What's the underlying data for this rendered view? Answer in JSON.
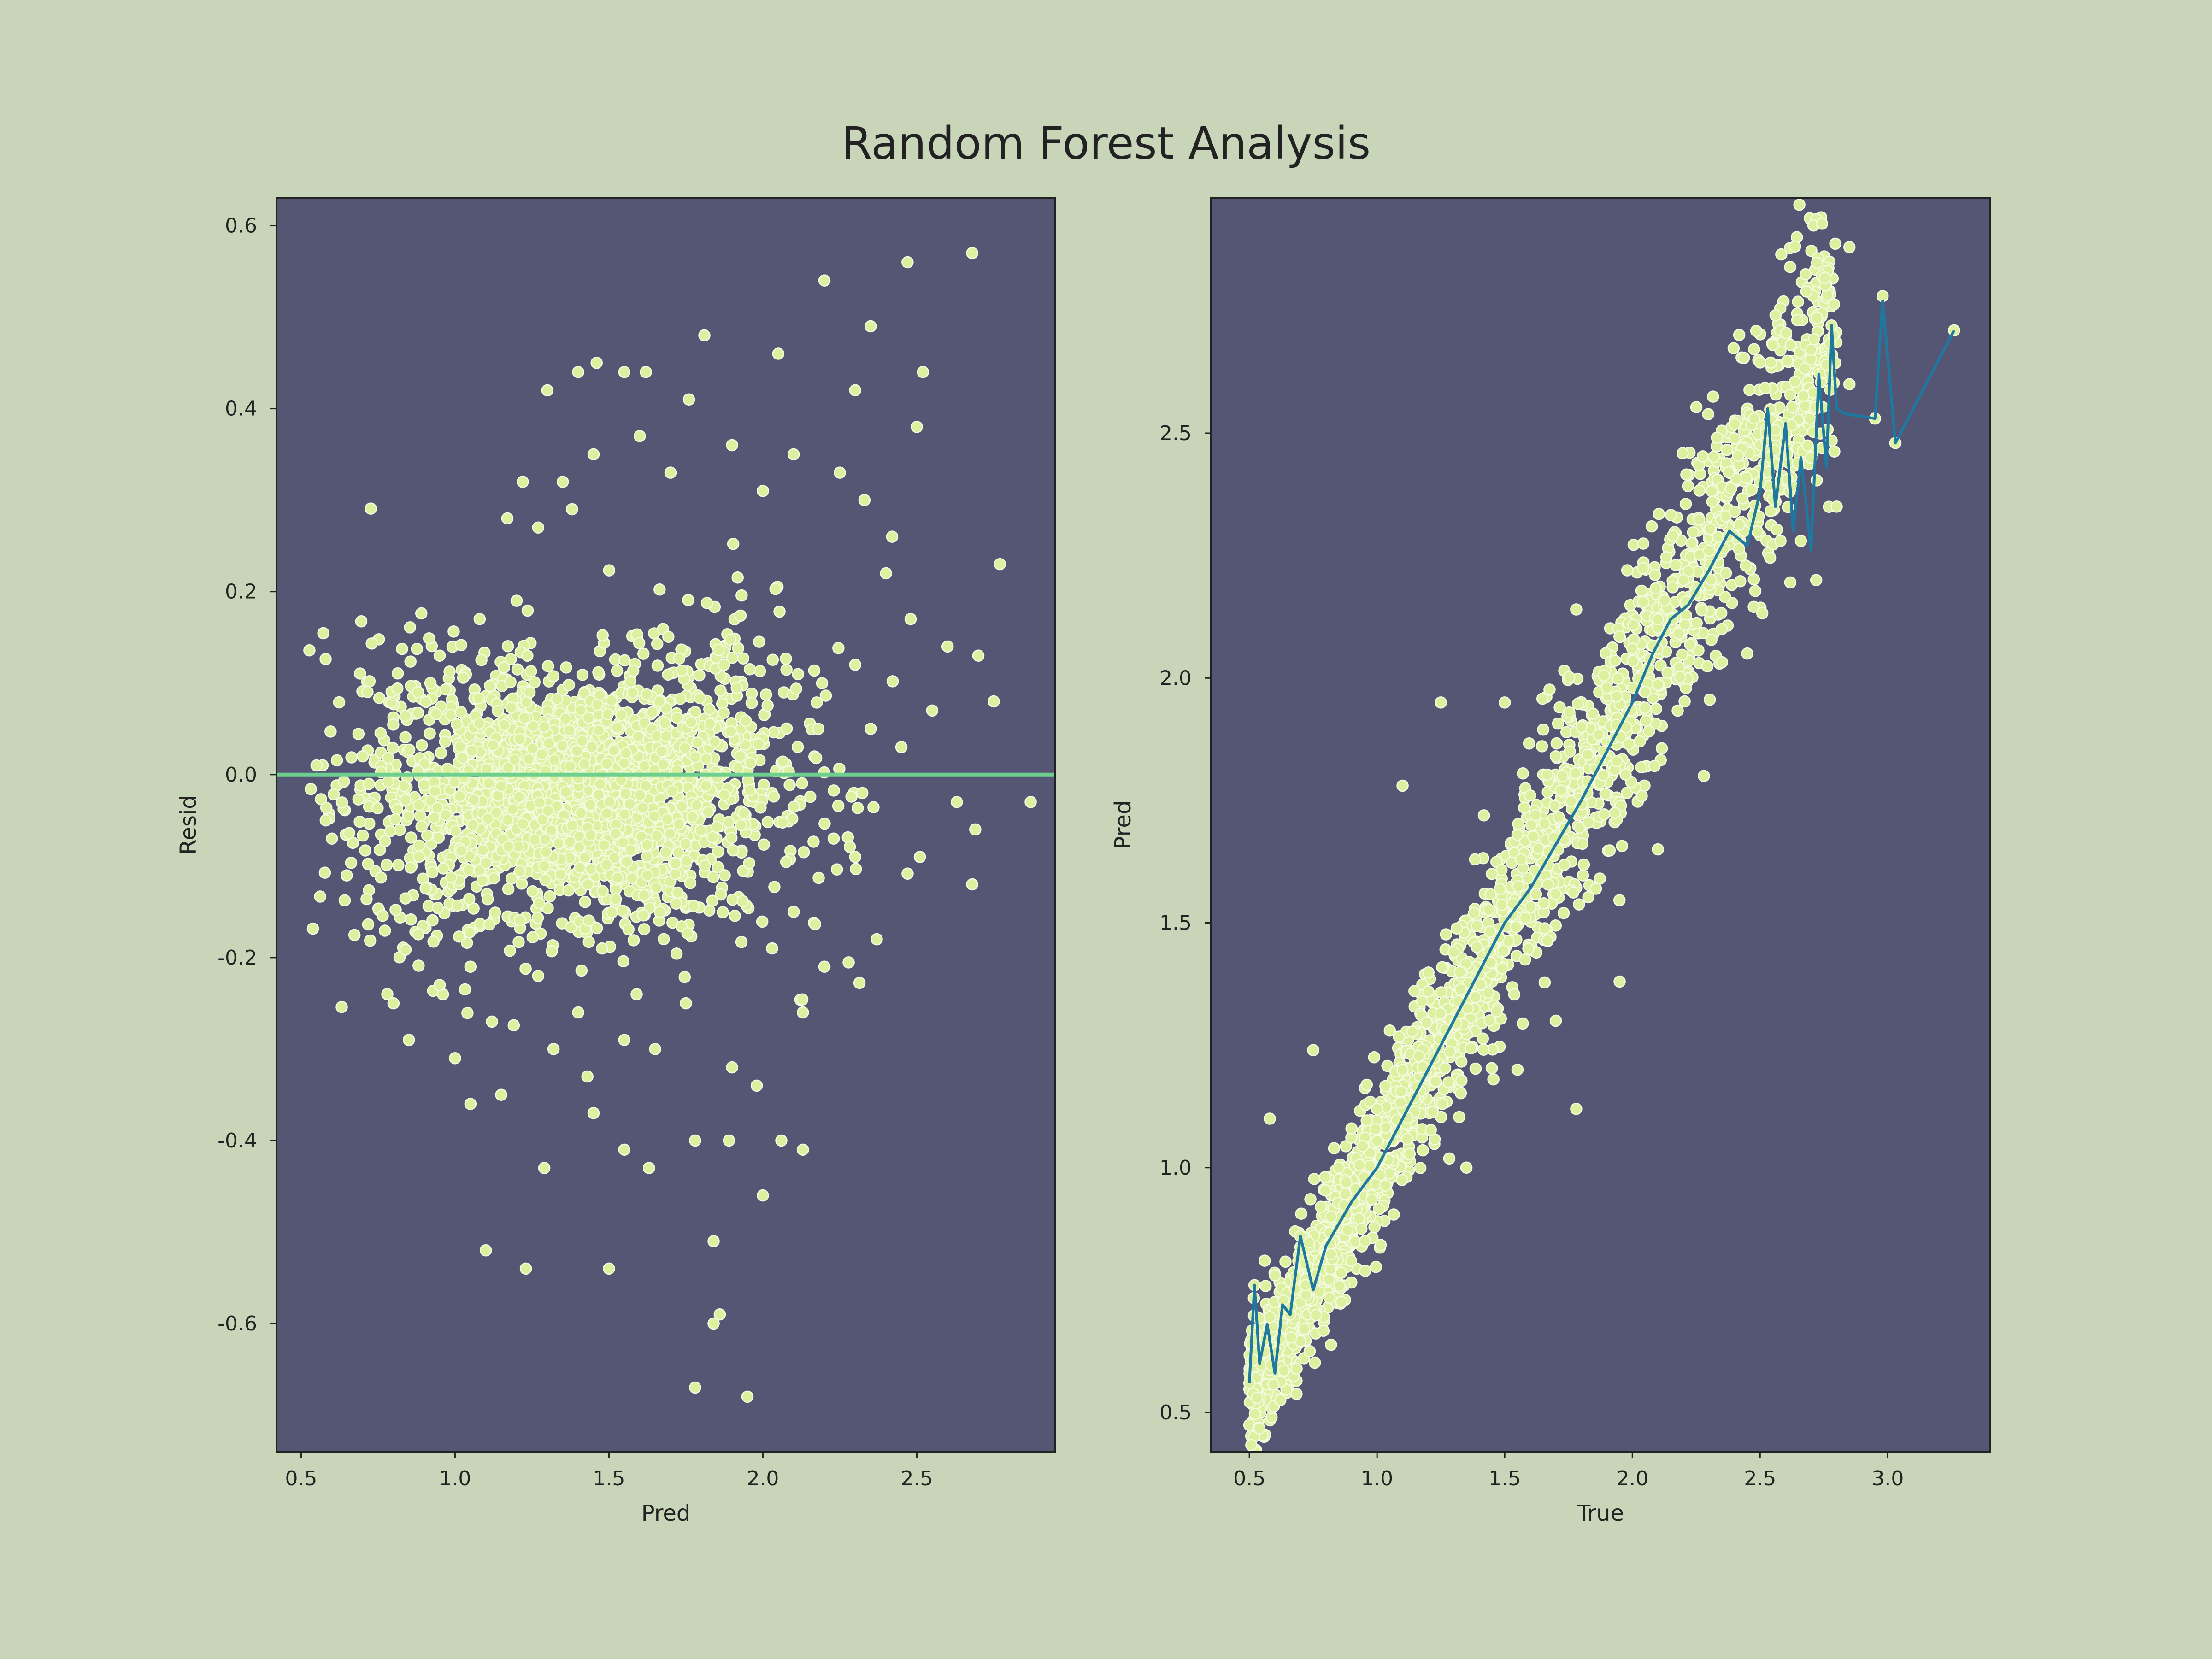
{
  "title": "Random Forest Analysis",
  "colors": {
    "background": "#c8d5b9",
    "panel": "#545674",
    "points": "#ddf0a0",
    "point_edge": "#f4fbe0",
    "zero_line": "#6fcf8f",
    "trend_line": "#1f78a0",
    "text": "#222222"
  },
  "chart_data": [
    {
      "type": "scatter",
      "xlabel": "Pred",
      "ylabel": "Resid",
      "xlim": [
        0.42,
        2.95
      ],
      "ylim": [
        -0.74,
        0.63
      ],
      "xticks": [
        0.5,
        1.0,
        1.5,
        2.0,
        2.5
      ],
      "xtick_labels": [
        "0.5",
        "1.0",
        "1.5",
        "2.0",
        "2.5"
      ],
      "yticks": [
        -0.6,
        -0.4,
        -0.2,
        0.0,
        0.2,
        0.4,
        0.6
      ],
      "ytick_labels": [
        "-0.6",
        "-0.4",
        "-0.2",
        "0.0",
        "0.2",
        "0.4",
        "0.6"
      ],
      "grid": false,
      "reference_line": {
        "y": 0.0
      },
      "points": [
        [
          2.68,
          0.57
        ],
        [
          2.47,
          0.56
        ],
        [
          2.2,
          0.54
        ],
        [
          1.81,
          0.48
        ],
        [
          1.46,
          0.45
        ],
        [
          1.62,
          0.44
        ],
        [
          2.35,
          0.49
        ],
        [
          2.52,
          0.44
        ],
        [
          2.05,
          0.46
        ],
        [
          1.3,
          0.42
        ],
        [
          1.76,
          0.41
        ],
        [
          2.3,
          0.42
        ],
        [
          2.5,
          0.38
        ],
        [
          1.55,
          0.44
        ],
        [
          1.4,
          0.44
        ],
        [
          1.35,
          0.32
        ],
        [
          2.77,
          0.23
        ],
        [
          2.6,
          0.14
        ],
        [
          2.55,
          0.07
        ],
        [
          2.7,
          0.13
        ],
        [
          2.75,
          0.08
        ],
        [
          2.87,
          -0.03
        ],
        [
          2.69,
          -0.06
        ],
        [
          2.68,
          -0.12
        ],
        [
          2.63,
          -0.03
        ],
        [
          2.51,
          -0.09
        ],
        [
          2.37,
          -0.18
        ],
        [
          2.2,
          -0.21
        ],
        [
          2.13,
          -0.26
        ],
        [
          2.13,
          -0.41
        ],
        [
          2.06,
          -0.4
        ],
        [
          2.0,
          -0.46
        ],
        [
          1.95,
          -0.68
        ],
        [
          1.78,
          -0.67
        ],
        [
          1.86,
          -0.59
        ],
        [
          1.84,
          -0.6
        ],
        [
          1.84,
          -0.51
        ],
        [
          1.5,
          -0.54
        ],
        [
          1.23,
          -0.54
        ],
        [
          1.1,
          -0.52
        ],
        [
          1.29,
          -0.43
        ],
        [
          1.63,
          -0.43
        ],
        [
          1.55,
          -0.41
        ],
        [
          1.78,
          -0.4
        ],
        [
          1.89,
          -0.4
        ],
        [
          1.98,
          -0.34
        ],
        [
          1.9,
          -0.32
        ],
        [
          1.45,
          -0.37
        ],
        [
          1.43,
          -0.33
        ],
        [
          1.05,
          -0.36
        ],
        [
          1.0,
          -0.31
        ],
        [
          1.15,
          -0.35
        ],
        [
          0.8,
          -0.25
        ],
        [
          0.85,
          -0.29
        ],
        [
          0.78,
          -0.24
        ],
        [
          0.95,
          -0.23
        ],
        [
          0.6,
          -0.07
        ],
        [
          0.55,
          0.01
        ],
        [
          0.58,
          -0.05
        ],
        [
          0.7,
          0.02
        ],
        [
          0.88,
          0.09
        ],
        [
          0.95,
          0.13
        ],
        [
          0.92,
          0.1
        ],
        [
          1.08,
          0.17
        ],
        [
          1.2,
          0.19
        ],
        [
          1.27,
          0.27
        ],
        [
          1.17,
          0.28
        ],
        [
          1.22,
          0.32
        ],
        [
          1.38,
          0.29
        ],
        [
          1.45,
          0.35
        ],
        [
          1.6,
          0.37
        ],
        [
          1.7,
          0.33
        ],
        [
          1.9,
          0.36
        ],
        [
          2.0,
          0.31
        ],
        [
          2.1,
          0.35
        ],
        [
          2.25,
          0.33
        ],
        [
          2.33,
          0.3
        ],
        [
          2.42,
          0.26
        ],
        [
          2.4,
          0.22
        ],
        [
          2.48,
          0.17
        ],
        [
          2.3,
          0.12
        ],
        [
          2.35,
          0.05
        ],
        [
          2.45,
          0.03
        ],
        [
          2.18,
          0.05
        ],
        [
          2.23,
          -0.07
        ],
        [
          2.3,
          -0.09
        ],
        [
          2.1,
          -0.15
        ],
        [
          2.03,
          -0.19
        ],
        [
          1.75,
          -0.25
        ],
        [
          1.65,
          -0.3
        ],
        [
          1.55,
          -0.29
        ],
        [
          1.4,
          -0.26
        ],
        [
          1.32,
          -0.3
        ],
        [
          1.27,
          -0.22
        ],
        [
          1.12,
          -0.27
        ],
        [
          1.05,
          -0.21
        ]
      ],
      "cloud_note_hidden": true
    },
    {
      "type": "scatter",
      "xlabel": "True",
      "ylabel": "Pred",
      "xlim": [
        0.35,
        3.4
      ],
      "ylim": [
        0.42,
        2.98
      ],
      "xticks": [
        0.5,
        1.0,
        1.5,
        2.0,
        2.5,
        3.0
      ],
      "xtick_labels": [
        "0.5",
        "1.0",
        "1.5",
        "2.0",
        "2.5",
        "3.0"
      ],
      "yticks": [
        0.5,
        1.0,
        1.5,
        2.0,
        2.5
      ],
      "ytick_labels": [
        "0.5",
        "1.0",
        "1.5",
        "2.0",
        "2.5"
      ],
      "grid": false,
      "points": [
        [
          0.5,
          0.56
        ],
        [
          0.53,
          0.53
        ],
        [
          0.52,
          0.76
        ],
        [
          0.56,
          0.81
        ],
        [
          0.58,
          1.1
        ],
        [
          0.75,
          1.24
        ],
        [
          0.6,
          0.78
        ],
        [
          0.7,
          0.86
        ],
        [
          0.78,
          0.92
        ],
        [
          0.85,
          1.0
        ],
        [
          0.9,
          1.08
        ],
        [
          1.0,
          1.12
        ],
        [
          1.1,
          1.2
        ],
        [
          1.05,
          1.28
        ],
        [
          1.2,
          1.36
        ],
        [
          1.3,
          1.44
        ],
        [
          1.38,
          1.52
        ],
        [
          1.45,
          1.6
        ],
        [
          1.55,
          1.68
        ],
        [
          1.6,
          1.76
        ],
        [
          1.7,
          1.84
        ],
        [
          1.8,
          1.9
        ],
        [
          1.9,
          1.98
        ],
        [
          2.0,
          2.06
        ],
        [
          2.1,
          2.12
        ],
        [
          2.2,
          2.2
        ],
        [
          2.3,
          2.26
        ],
        [
          2.4,
          2.34
        ],
        [
          2.5,
          2.4
        ],
        [
          1.1,
          1.78
        ],
        [
          1.25,
          1.95
        ],
        [
          1.5,
          1.95
        ],
        [
          1.62,
          1.72
        ],
        [
          1.78,
          2.14
        ],
        [
          1.98,
          2.22
        ],
        [
          1.95,
          1.38
        ],
        [
          1.78,
          1.12
        ],
        [
          1.55,
          1.2
        ],
        [
          1.35,
          1.0
        ],
        [
          1.7,
          1.3
        ],
        [
          2.28,
          1.8
        ],
        [
          2.1,
          1.65
        ],
        [
          2.55,
          2.68
        ],
        [
          2.62,
          2.68
        ],
        [
          2.76,
          2.64
        ],
        [
          2.85,
          2.88
        ],
        [
          2.98,
          2.78
        ],
        [
          3.26,
          2.71
        ],
        [
          3.03,
          2.48
        ],
        [
          2.95,
          2.53
        ],
        [
          2.78,
          2.72
        ],
        [
          2.85,
          2.6
        ],
        [
          2.72,
          2.2
        ],
        [
          2.66,
          2.28
        ],
        [
          2.58,
          2.28
        ],
        [
          2.6,
          2.5
        ],
        [
          2.7,
          2.45
        ],
        [
          2.8,
          2.35
        ],
        [
          2.45,
          2.05
        ],
        [
          2.35,
          2.1
        ],
        [
          0.95,
          0.98
        ],
        [
          0.82,
          0.9
        ],
        [
          0.66,
          0.7
        ],
        [
          0.62,
          0.65
        ],
        [
          0.72,
          0.76
        ],
        [
          0.88,
          0.97
        ]
      ],
      "trend_x": [
        0.5,
        0.52,
        0.54,
        0.57,
        0.6,
        0.63,
        0.66,
        0.7,
        0.75,
        0.8,
        0.9,
        1.0,
        1.1,
        1.2,
        1.3,
        1.4,
        1.5,
        1.6,
        1.7,
        1.8,
        1.9,
        2.0,
        2.08,
        2.15,
        2.22,
        2.3,
        2.38,
        2.45,
        2.5,
        2.53,
        2.56,
        2.6,
        2.63,
        2.66,
        2.7,
        2.73,
        2.76,
        2.78,
        2.8,
        2.83,
        2.95,
        2.98,
        3.03,
        3.26
      ],
      "trend_y": [
        0.56,
        0.76,
        0.6,
        0.68,
        0.58,
        0.72,
        0.7,
        0.86,
        0.75,
        0.84,
        0.93,
        1.0,
        1.1,
        1.2,
        1.3,
        1.4,
        1.5,
        1.57,
        1.66,
        1.75,
        1.85,
        1.95,
        2.05,
        2.12,
        2.15,
        2.22,
        2.3,
        2.27,
        2.38,
        2.55,
        2.35,
        2.52,
        2.3,
        2.45,
        2.26,
        2.62,
        2.43,
        2.72,
        2.55,
        2.54,
        2.53,
        2.77,
        2.48,
        2.71
      ]
    }
  ]
}
